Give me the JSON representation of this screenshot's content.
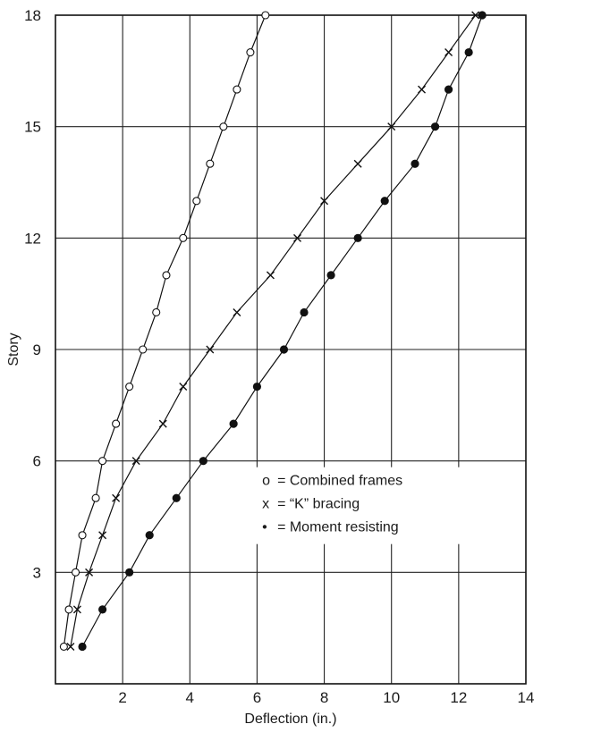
{
  "chart_data": {
    "type": "line",
    "xlabel": "Deflection (in.)",
    "ylabel": "Story",
    "xlim": [
      0,
      14
    ],
    "ylim": [
      0,
      18
    ],
    "x_ticks": [
      "2",
      "4",
      "6",
      "8",
      "10",
      "12",
      "14"
    ],
    "y_ticks": [
      "3",
      "6",
      "9",
      "12",
      "15",
      "18"
    ],
    "grid": true,
    "legend_position": "lower-right",
    "series": [
      {
        "name": "Combined frames",
        "legend_label": "= Combined frames",
        "legend_symbol": "o",
        "marker": "open-circle",
        "points": [
          {
            "x": 0.25,
            "y": 1
          },
          {
            "x": 0.4,
            "y": 2
          },
          {
            "x": 0.6,
            "y": 3
          },
          {
            "x": 0.8,
            "y": 4
          },
          {
            "x": 1.2,
            "y": 5
          },
          {
            "x": 1.4,
            "y": 6
          },
          {
            "x": 1.8,
            "y": 7
          },
          {
            "x": 2.2,
            "y": 8
          },
          {
            "x": 2.6,
            "y": 9
          },
          {
            "x": 3.0,
            "y": 10
          },
          {
            "x": 3.3,
            "y": 11
          },
          {
            "x": 3.8,
            "y": 12
          },
          {
            "x": 4.2,
            "y": 13
          },
          {
            "x": 4.6,
            "y": 14
          },
          {
            "x": 5.0,
            "y": 15
          },
          {
            "x": 5.4,
            "y": 16
          },
          {
            "x": 5.8,
            "y": 17
          },
          {
            "x": 6.25,
            "y": 18
          }
        ]
      },
      {
        "name": "\"K\" bracing",
        "legend_label": "= “K” bracing",
        "legend_symbol": "x",
        "marker": "x",
        "points": [
          {
            "x": 0.45,
            "y": 1
          },
          {
            "x": 0.65,
            "y": 2
          },
          {
            "x": 1.0,
            "y": 3
          },
          {
            "x": 1.4,
            "y": 4
          },
          {
            "x": 1.8,
            "y": 5
          },
          {
            "x": 2.4,
            "y": 6
          },
          {
            "x": 3.2,
            "y": 7
          },
          {
            "x": 3.8,
            "y": 8
          },
          {
            "x": 4.6,
            "y": 9
          },
          {
            "x": 5.4,
            "y": 10
          },
          {
            "x": 6.4,
            "y": 11
          },
          {
            "x": 7.2,
            "y": 12
          },
          {
            "x": 8.0,
            "y": 13
          },
          {
            "x": 9.0,
            "y": 14
          },
          {
            "x": 10.0,
            "y": 15
          },
          {
            "x": 10.9,
            "y": 16
          },
          {
            "x": 11.7,
            "y": 17
          },
          {
            "x": 12.5,
            "y": 18
          }
        ]
      },
      {
        "name": "Moment resisting",
        "legend_label": "= Moment resisting",
        "legend_symbol": "•",
        "marker": "filled-circle",
        "points": [
          {
            "x": 0.8,
            "y": 1
          },
          {
            "x": 1.4,
            "y": 2
          },
          {
            "x": 2.2,
            "y": 3
          },
          {
            "x": 2.8,
            "y": 4
          },
          {
            "x": 3.6,
            "y": 5
          },
          {
            "x": 4.4,
            "y": 6
          },
          {
            "x": 5.3,
            "y": 7
          },
          {
            "x": 6.0,
            "y": 8
          },
          {
            "x": 6.8,
            "y": 9
          },
          {
            "x": 7.4,
            "y": 10
          },
          {
            "x": 8.2,
            "y": 11
          },
          {
            "x": 9.0,
            "y": 12
          },
          {
            "x": 9.8,
            "y": 13
          },
          {
            "x": 10.7,
            "y": 14
          },
          {
            "x": 11.3,
            "y": 15
          },
          {
            "x": 11.7,
            "y": 16
          },
          {
            "x": 12.3,
            "y": 17
          },
          {
            "x": 12.7,
            "y": 18
          }
        ]
      }
    ]
  }
}
